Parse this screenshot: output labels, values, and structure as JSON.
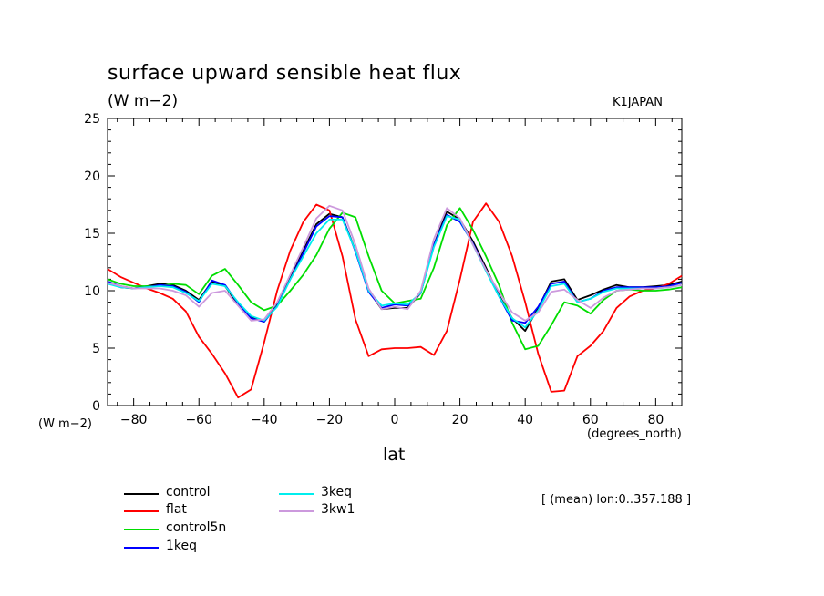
{
  "title": "surface upward sensible heat flux",
  "units": "(W m−2)",
  "model": "K1JAPAN",
  "y_axis_units": "(W m−2)",
  "x_axis_units": "(degrees_north)",
  "x_axis_label": "lat",
  "mean_note": "[ (mean) lon:0..357.188 ]",
  "chart_data": {
    "type": "line",
    "title": "surface upward sensible heat flux",
    "xlabel": "lat",
    "ylabel": "(W m−2)",
    "xlim": [
      -88,
      88
    ],
    "ylim": [
      0,
      25
    ],
    "x_ticks": [
      -80,
      -60,
      -40,
      -20,
      0,
      20,
      40,
      60,
      80
    ],
    "y_ticks": [
      0,
      5,
      10,
      15,
      20,
      25
    ],
    "x_tick_labels": [
      "−80",
      "−60",
      "−40",
      "−20",
      "0",
      "20",
      "40",
      "60",
      "80"
    ],
    "y_tick_labels": [
      "0",
      "5",
      "10",
      "15",
      "20",
      "25"
    ],
    "grid": false,
    "legend_position": "bottom-left",
    "x": [
      -88,
      -84,
      -80,
      -76,
      -72,
      -68,
      -64,
      -60,
      -56,
      -52,
      -48,
      -44,
      -40,
      -36,
      -32,
      -28,
      -24,
      -20,
      -16,
      -12,
      -8,
      -4,
      0,
      4,
      8,
      12,
      16,
      20,
      24,
      28,
      32,
      36,
      40,
      44,
      48,
      52,
      56,
      60,
      64,
      68,
      72,
      76,
      80,
      84,
      88
    ],
    "series": [
      {
        "name": "control",
        "color": "#000000",
        "values": [
          10.7,
          10.3,
          10.2,
          10.4,
          10.6,
          10.5,
          10.0,
          9.2,
          10.8,
          10.4,
          8.8,
          7.7,
          7.3,
          8.8,
          11.3,
          13.5,
          15.8,
          16.7,
          16.4,
          13.5,
          10.0,
          8.4,
          8.5,
          8.5,
          9.8,
          14.0,
          16.9,
          16.2,
          14.3,
          12.0,
          9.6,
          7.6,
          6.5,
          8.5,
          10.8,
          11.0,
          9.2,
          9.6,
          10.1,
          10.5,
          10.3,
          10.3,
          10.4,
          10.5,
          10.8
        ]
      },
      {
        "name": "flat",
        "color": "#ff0000",
        "values": [
          11.9,
          11.2,
          10.7,
          10.2,
          9.8,
          9.3,
          8.2,
          6.0,
          4.5,
          2.8,
          0.7,
          1.4,
          5.5,
          10.0,
          13.5,
          16.0,
          17.5,
          17.0,
          13.0,
          7.5,
          4.3,
          4.9,
          5.0,
          5.0,
          5.1,
          4.4,
          6.5,
          11.0,
          16.0,
          17.6,
          16.0,
          13.0,
          9.0,
          4.5,
          1.2,
          1.3,
          4.3,
          5.2,
          6.5,
          8.5,
          9.5,
          10.0,
          10.2,
          10.6,
          11.3
        ]
      },
      {
        "name": "control5n",
        "color": "#00dd00",
        "values": [
          11.0,
          10.6,
          10.4,
          10.4,
          10.4,
          10.6,
          10.5,
          9.7,
          11.3,
          11.9,
          10.5,
          9.0,
          8.3,
          8.7,
          10.0,
          11.4,
          13.1,
          15.4,
          16.8,
          16.4,
          13.0,
          10.0,
          8.9,
          9.1,
          9.3,
          12.0,
          15.7,
          17.2,
          15.3,
          13.0,
          10.5,
          7.2,
          4.9,
          5.2,
          7.0,
          9.0,
          8.7,
          8.0,
          9.2,
          10.0,
          10.1,
          10.0,
          10.0,
          10.1,
          10.3
        ]
      },
      {
        "name": "1keq",
        "color": "#0000ff",
        "values": [
          10.8,
          10.4,
          10.2,
          10.3,
          10.5,
          10.4,
          9.9,
          9.0,
          10.9,
          10.5,
          8.9,
          7.6,
          7.3,
          8.7,
          11.0,
          13.3,
          15.6,
          16.5,
          16.4,
          13.4,
          9.9,
          8.5,
          8.8,
          8.7,
          9.8,
          14.0,
          16.6,
          16.0,
          14.1,
          11.8,
          9.5,
          7.4,
          7.2,
          8.6,
          10.6,
          10.8,
          9.0,
          9.3,
          10.0,
          10.3,
          10.3,
          10.3,
          10.3,
          10.4,
          10.7
        ]
      },
      {
        "name": "3keq",
        "color": "#00eeee",
        "values": [
          10.6,
          10.3,
          10.2,
          10.3,
          10.4,
          10.3,
          9.8,
          9.1,
          10.6,
          10.4,
          9.0,
          7.8,
          7.4,
          8.6,
          11.0,
          13.0,
          15.0,
          16.2,
          16.2,
          13.5,
          10.0,
          8.7,
          8.9,
          8.8,
          9.8,
          13.8,
          16.5,
          16.2,
          14.0,
          11.7,
          9.5,
          7.6,
          6.8,
          8.3,
          10.4,
          10.6,
          9.0,
          9.3,
          9.9,
          10.2,
          10.2,
          10.2,
          10.2,
          10.3,
          10.5
        ]
      },
      {
        "name": "3kw1",
        "color": "#cc99dd",
        "values": [
          10.7,
          10.4,
          10.2,
          10.2,
          10.2,
          10.0,
          9.6,
          8.6,
          9.8,
          10.0,
          8.7,
          7.4,
          7.5,
          9.0,
          11.4,
          13.8,
          16.3,
          17.4,
          17.0,
          14.0,
          10.2,
          8.4,
          8.6,
          8.4,
          10.0,
          14.5,
          17.2,
          16.3,
          14.0,
          11.8,
          9.9,
          8.1,
          7.4,
          8.1,
          9.9,
          10.1,
          9.2,
          8.5,
          9.4,
          10.0,
          10.1,
          10.2,
          10.2,
          10.3,
          10.5
        ]
      }
    ]
  }
}
